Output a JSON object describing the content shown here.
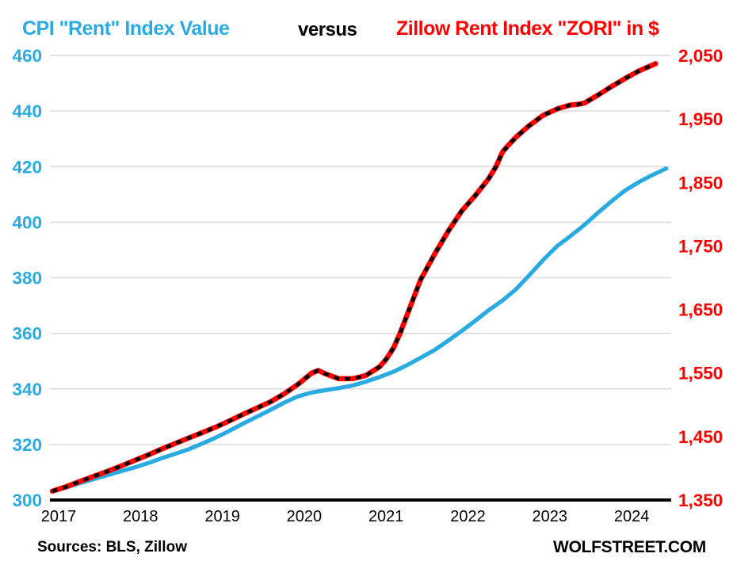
{
  "title": {
    "left": "CPI \"Rent\" Index Value",
    "middle": "versus",
    "right": "Zillow Rent Index \"ZORI\" in $"
  },
  "footer": {
    "sources": "Sources: BLS, Zillow",
    "brand": "WOLFSTREET.COM"
  },
  "colors": {
    "cpi_line": "#29ABE2",
    "zori_line": "#FF0000",
    "zori_dash": "#000000",
    "grid": "#D9D9D9",
    "axis": "#000000",
    "x_label": "#000000"
  },
  "chart_data": {
    "type": "line",
    "title": "CPI \"Rent\" Index Value versus Zillow Rent Index \"ZORI\" in $",
    "grid": "horizontal",
    "legend_position": "none",
    "x_axis": {
      "ticks": [
        2017,
        2018,
        2019,
        2020,
        2021,
        2022,
        2023,
        2024
      ],
      "range": [
        2017,
        2024.6
      ]
    },
    "left_axis": {
      "label_color": "#29ABE2",
      "ticks": [
        300,
        320,
        340,
        360,
        380,
        400,
        420,
        440,
        460
      ],
      "range": [
        300,
        460
      ]
    },
    "right_axis": {
      "label_color": "#FF0000",
      "tick_labels": [
        "1,350",
        "1,450",
        "1,550",
        "1,650",
        "1,750",
        "1,850",
        "1,950",
        "2,050"
      ],
      "tick_values": [
        1350,
        1450,
        1550,
        1650,
        1750,
        1850,
        1950,
        2050
      ],
      "range": [
        1350,
        2050
      ]
    },
    "series": [
      {
        "name": "CPI Rent Index Value",
        "axis": "left",
        "color": "#29ABE2",
        "style": "solid",
        "points": [
          [
            2017.0,
            303.0
          ],
          [
            2017.17,
            304.5
          ],
          [
            2017.33,
            306.0
          ],
          [
            2017.5,
            307.5
          ],
          [
            2017.67,
            308.9
          ],
          [
            2017.83,
            310.3
          ],
          [
            2018.0,
            311.7
          ],
          [
            2018.17,
            313.3
          ],
          [
            2018.33,
            315.0
          ],
          [
            2018.5,
            316.6
          ],
          [
            2018.67,
            318.3
          ],
          [
            2018.83,
            320.3
          ],
          [
            2019.0,
            322.5
          ],
          [
            2019.17,
            325.0
          ],
          [
            2019.33,
            327.5
          ],
          [
            2019.5,
            330.0
          ],
          [
            2019.67,
            332.5
          ],
          [
            2019.83,
            335.0
          ],
          [
            2020.0,
            337.3
          ],
          [
            2020.17,
            338.7
          ],
          [
            2020.33,
            339.5
          ],
          [
            2020.5,
            340.3
          ],
          [
            2020.67,
            341.2
          ],
          [
            2020.83,
            342.6
          ],
          [
            2021.0,
            344.3
          ],
          [
            2021.17,
            346.2
          ],
          [
            2021.33,
            348.5
          ],
          [
            2021.5,
            351.2
          ],
          [
            2021.67,
            354.0
          ],
          [
            2021.83,
            357.2
          ],
          [
            2022.0,
            360.8
          ],
          [
            2022.17,
            364.6
          ],
          [
            2022.33,
            368.3
          ],
          [
            2022.5,
            371.8
          ],
          [
            2022.67,
            376.0
          ],
          [
            2022.83,
            381.0
          ],
          [
            2023.0,
            386.5
          ],
          [
            2023.17,
            391.5
          ],
          [
            2023.33,
            395.0
          ],
          [
            2023.5,
            399.0
          ],
          [
            2023.67,
            403.5
          ],
          [
            2023.83,
            407.5
          ],
          [
            2024.0,
            411.5
          ],
          [
            2024.17,
            414.5
          ],
          [
            2024.33,
            417.0
          ],
          [
            2024.5,
            419.3
          ]
        ]
      },
      {
        "name": "Zillow Rent Index ZORI in $",
        "axis": "right",
        "color": "#FF0000",
        "style": "dashed-black-overlay",
        "points": [
          [
            2017.0,
            1364
          ],
          [
            2017.17,
            1371
          ],
          [
            2017.33,
            1379
          ],
          [
            2017.5,
            1387
          ],
          [
            2017.67,
            1395
          ],
          [
            2017.83,
            1403
          ],
          [
            2018.0,
            1412
          ],
          [
            2018.17,
            1421
          ],
          [
            2018.33,
            1430
          ],
          [
            2018.5,
            1439
          ],
          [
            2018.67,
            1448
          ],
          [
            2018.83,
            1456
          ],
          [
            2019.0,
            1465
          ],
          [
            2019.17,
            1475
          ],
          [
            2019.33,
            1485
          ],
          [
            2019.5,
            1495
          ],
          [
            2019.67,
            1505
          ],
          [
            2019.83,
            1517
          ],
          [
            2020.0,
            1532
          ],
          [
            2020.17,
            1550
          ],
          [
            2020.25,
            1554
          ],
          [
            2020.33,
            1549
          ],
          [
            2020.5,
            1541
          ],
          [
            2020.67,
            1541
          ],
          [
            2020.83,
            1546
          ],
          [
            2021.0,
            1560
          ],
          [
            2021.08,
            1572
          ],
          [
            2021.17,
            1590
          ],
          [
            2021.25,
            1613
          ],
          [
            2021.33,
            1640
          ],
          [
            2021.5,
            1697
          ],
          [
            2021.67,
            1737
          ],
          [
            2021.83,
            1772
          ],
          [
            2022.0,
            1805
          ],
          [
            2022.17,
            1830
          ],
          [
            2022.33,
            1856
          ],
          [
            2022.42,
            1875
          ],
          [
            2022.5,
            1898
          ],
          [
            2022.58,
            1910
          ],
          [
            2022.67,
            1922
          ],
          [
            2022.83,
            1940
          ],
          [
            2023.0,
            1956
          ],
          [
            2023.17,
            1966
          ],
          [
            2023.33,
            1972
          ],
          [
            2023.42,
            1973
          ],
          [
            2023.5,
            1975
          ],
          [
            2023.67,
            1988
          ],
          [
            2023.83,
            2001
          ],
          [
            2024.0,
            2014
          ],
          [
            2024.17,
            2026
          ],
          [
            2024.37,
            2037
          ]
        ]
      }
    ]
  }
}
